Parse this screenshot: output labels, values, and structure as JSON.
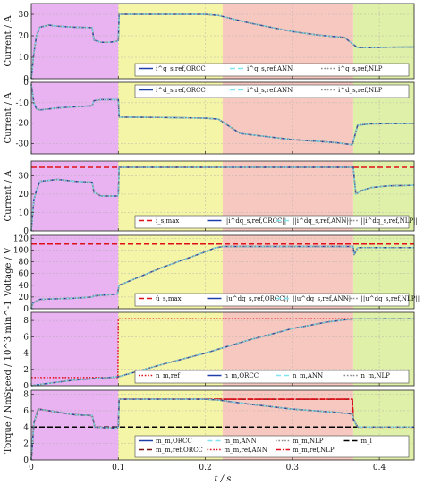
{
  "chart_data": {
    "type": "line",
    "title": "",
    "xlabel": "t / s",
    "xlim": [
      0,
      0.44
    ],
    "xticks": [
      "0",
      "0.1",
      "0.2",
      "0.3",
      "0.4"
    ],
    "xtick_values": [
      0,
      0.1,
      0.2,
      0.3,
      0.4
    ],
    "grid": true,
    "region_colors": [
      "#e8b3f0",
      "#f5f5a8",
      "#f7c8c0",
      "#dff0a8"
    ],
    "regions_t": [
      [
        0,
        0.1
      ],
      [
        0.1,
        0.22
      ],
      [
        0.22,
        0.37
      ],
      [
        0.37,
        0.44
      ]
    ],
    "panels": [
      {
        "ylabel": "Current / A",
        "ylim": [
          0,
          35
        ],
        "yticks": [
          0,
          10,
          20,
          30
        ],
        "legend": [
          "i^q_s,ref,ORCC",
          "i^q_s,ref,ANN",
          "i^q_s,ref,NLP"
        ],
        "legend_location": "bottom",
        "series": [
          {
            "name": "i^q_s,ref,ORCC",
            "color": "#1f3fa8",
            "style": "solid",
            "t": [
              0,
              0.003,
              0.006,
              0.01,
              0.02,
              0.03,
              0.05,
              0.07,
              0.072,
              0.08,
              0.09,
              0.099,
              0.1,
              0.101,
              0.15,
              0.2,
              0.215,
              0.25,
              0.3,
              0.33,
              0.36,
              0.37,
              0.375,
              0.39,
              0.41,
              0.44
            ],
            "values": [
              0,
              12,
              20,
              24,
              25,
              24.5,
              24,
              23.8,
              18,
              17,
              17,
              17.5,
              18,
              30,
              30,
              30,
              29.5,
              26,
              22,
              20.3,
              19.2,
              16,
              14.5,
              14.5,
              14.7,
              14.8
            ]
          },
          {
            "name": "i^q_s,ref,ANN",
            "color": "#7fe3f0",
            "style": "dashed",
            "same_as": "i^q_s,ref,ORCC"
          },
          {
            "name": "i^q_s,ref,NLP",
            "color": "#8a8a8a",
            "style": "dotted",
            "same_as": "i^q_s,ref,ORCC"
          }
        ]
      },
      {
        "ylabel": "Current / A",
        "ylim": [
          -35,
          0
        ],
        "yticks": [
          -30,
          -20,
          -10,
          0
        ],
        "legend": [
          "i^d_s,ref,ORCC",
          "i^d_s,ref,ANN",
          "i^d_s,ref,NLP"
        ],
        "legend_location": "top",
        "series": [
          {
            "name": "i^d_s,ref,ORCC",
            "color": "#1f3fa8",
            "style": "solid",
            "t": [
              0,
              0.003,
              0.006,
              0.01,
              0.03,
              0.05,
              0.07,
              0.072,
              0.08,
              0.09,
              0.099,
              0.1,
              0.101,
              0.15,
              0.2,
              0.215,
              0.24,
              0.3,
              0.35,
              0.369,
              0.37,
              0.375,
              0.39,
              0.41,
              0.44
            ],
            "values": [
              -1,
              -10,
              -13,
              -13.5,
              -12.5,
              -12,
              -11.5,
              -9,
              -8.5,
              -8.5,
              -8.5,
              -8.5,
              -17,
              -17.2,
              -17.5,
              -18,
              -25,
              -28,
              -29.5,
              -30.5,
              -29,
              -21,
              -20.3,
              -20.2,
              -20.1
            ]
          },
          {
            "name": "i^d_s,ref,ANN",
            "color": "#7fe3f0",
            "style": "dashed",
            "same_as": "i^d_s,ref,ORCC"
          },
          {
            "name": "i^d_s,ref,NLP",
            "color": "#8a8a8a",
            "style": "dotted",
            "same_as": "i^d_s,ref,ORCC"
          }
        ]
      },
      {
        "ylabel": "Current / A",
        "ylim": [
          0,
          38
        ],
        "yticks": [
          0,
          10,
          20,
          30
        ],
        "legend": [
          "i_s,max",
          "||i^dq_s,ref,ORCC||",
          "||i^dq_s,ref,ANN||",
          "||i^dq_s,ref,NLP||"
        ],
        "legend_location": "bottom",
        "series": [
          {
            "name": "i_s,max",
            "color": "#e0101a",
            "style": "dashed",
            "t": [
              0,
              0.44
            ],
            "values": [
              34.6,
              34.6
            ]
          },
          {
            "name": "||i^dq_s,ref,ORCC||",
            "color": "#1f3fa8",
            "style": "solid",
            "t": [
              0,
              0.003,
              0.006,
              0.01,
              0.03,
              0.05,
              0.07,
              0.072,
              0.08,
              0.09,
              0.099,
              0.1,
              0.101,
              0.2,
              0.3,
              0.369,
              0.37,
              0.373,
              0.38,
              0.39,
              0.41,
              0.44
            ],
            "values": [
              0,
              17,
              22,
              27,
              28,
              27,
              26.5,
              21,
              19,
              19,
              19,
              19.5,
              34.6,
              34.6,
              34.6,
              34.6,
              34.6,
              20,
              22,
              23.5,
              24.5,
              24.8
            ]
          },
          {
            "name": "||i^dq_s,ref,ANN||",
            "color": "#7fe3f0",
            "style": "dashed",
            "same_as": "||i^dq_s,ref,ORCC||"
          },
          {
            "name": "||i^dq_s,ref,NLP||",
            "color": "#8a8a8a",
            "style": "dotted",
            "same_as": "||i^dq_s,ref,ORCC||"
          }
        ]
      },
      {
        "ylabel": "Voltage / V",
        "ylim": [
          0,
          125
        ],
        "yticks": [
          0,
          20,
          40,
          60,
          80,
          100,
          120
        ],
        "legend": [
          "û_s,max",
          "||u^dq_s,ref,ORCC||",
          "||u^dq_s,ref,ANN||",
          "||u^dq_s,ref,NLP||"
        ],
        "legend_location": "bottom",
        "series": [
          {
            "name": "û_s,max",
            "color": "#e0101a",
            "style": "dashed",
            "t": [
              0,
              0.44
            ],
            "values": [
              110,
              110
            ]
          },
          {
            "name": "||u^dq_s,ref,ORCC||",
            "color": "#1f3fa8",
            "style": "solid",
            "t": [
              0,
              0.002,
              0.01,
              0.05,
              0.07,
              0.072,
              0.09,
              0.099,
              0.101,
              0.15,
              0.2,
              0.21,
              0.22,
              0.3,
              0.37,
              0.371,
              0.375,
              0.44
            ],
            "values": [
              0,
              10,
              16,
              18,
              20,
              22,
              24,
              25,
              40,
              70,
              97,
              103,
              106,
              106,
              106,
              92,
              104,
              104
            ]
          },
          {
            "name": "||u^dq_s,ref,ANN||",
            "color": "#7fe3f0",
            "style": "dashed",
            "same_as": "||u^dq_s,ref,ORCC||"
          },
          {
            "name": "||u^dq_s,ref,NLP||",
            "color": "#8a8a8a",
            "style": "dotted",
            "same_as": "||u^dq_s,ref,ORCC||"
          }
        ]
      },
      {
        "ylabel": "Speed / 10^3 min^-1",
        "ylim": [
          0,
          9
        ],
        "yticks": [
          0,
          2,
          4,
          6,
          8
        ],
        "legend": [
          "n_m,ref",
          "n_m,ORCC",
          "n_m,ANN",
          "n_m,NLP"
        ],
        "legend_location": "bottom",
        "series": [
          {
            "name": "n_m,ref",
            "color": "#e0101a",
            "style": "dotted",
            "t": [
              0,
              0.0995,
              0.1,
              0.44
            ],
            "values": [
              1,
              1,
              8.2,
              8.2
            ]
          },
          {
            "name": "n_m,ORCC",
            "color": "#1f3fa8",
            "style": "solid",
            "t": [
              0,
              0.02,
              0.05,
              0.1,
              0.15,
              0.2,
              0.25,
              0.3,
              0.34,
              0.37,
              0.38,
              0.44
            ],
            "values": [
              0,
              0.3,
              0.7,
              1.1,
              2.6,
              4.0,
              5.6,
              7.0,
              7.8,
              8.2,
              8.2,
              8.2
            ]
          },
          {
            "name": "n_m,ANN",
            "color": "#7fe3f0",
            "style": "dashed",
            "same_as": "n_m,ORCC"
          },
          {
            "name": "n_m,NLP",
            "color": "#8a8a8a",
            "style": "dotted",
            "same_as": "n_m,ORCC"
          }
        ]
      },
      {
        "ylabel": "Torque / Nm",
        "ylim": [
          0,
          8.5
        ],
        "yticks": [
          0,
          2,
          4,
          6,
          8
        ],
        "legend": [
          "m_m,ORCC",
          "m_m,ANN",
          "m_m,NLP",
          "m_l",
          "m_m,ref,ORCC",
          "m_m,ref,ANN",
          "m_m,ref,NLP"
        ],
        "legend_location": "bottom",
        "series": [
          {
            "name": "m_l",
            "color": "#000000",
            "style": "dashed",
            "t": [
              0,
              0.44
            ],
            "values": [
              4,
              4
            ]
          },
          {
            "name": "m_m,ref,ORCC",
            "color": "#7a1010",
            "style": "dashed",
            "t": [
              0,
              0.003,
              0.008,
              0.02,
              0.05,
              0.07,
              0.073,
              0.09,
              0.099,
              0.1,
              0.101,
              0.2,
              0.215,
              0.3,
              0.369,
              0.37,
              0.375,
              0.39,
              0.44
            ],
            "values": [
              0,
              4.5,
              6.2,
              6.0,
              5.5,
              5.4,
              4.0,
              3.9,
              3.9,
              4.0,
              7.4,
              7.4,
              7.4,
              7.4,
              7.4,
              5.0,
              4.0,
              4.0,
              4.0
            ]
          },
          {
            "name": "m_m,ref,ANN",
            "color": "#e0101a",
            "style": "dotted",
            "same_as": "m_m,ref,ORCC"
          },
          {
            "name": "m_m,ref,NLP",
            "color": "#e0101a",
            "style": "dashdot",
            "same_as": "m_m,ref,ORCC"
          },
          {
            "name": "m_m,ORCC",
            "color": "#1f3fa8",
            "style": "solid",
            "t": [
              0,
              0.003,
              0.008,
              0.02,
              0.05,
              0.07,
              0.073,
              0.09,
              0.099,
              0.1,
              0.101,
              0.2,
              0.215,
              0.25,
              0.3,
              0.35,
              0.369,
              0.37,
              0.375,
              0.39,
              0.44
            ],
            "values": [
              0,
              4.5,
              6.2,
              6.0,
              5.5,
              5.4,
              4.0,
              3.9,
              3.9,
              4.0,
              7.4,
              7.4,
              7.3,
              6.8,
              6.2,
              5.8,
              5.6,
              5.0,
              4.0,
              4.0,
              4.0
            ]
          },
          {
            "name": "m_m,ANN",
            "color": "#7fe3f0",
            "style": "dashed",
            "same_as": "m_m,ORCC"
          },
          {
            "name": "m_m,NLP",
            "color": "#8a8a8a",
            "style": "dotted",
            "same_as": "m_m,ORCC"
          }
        ]
      }
    ]
  }
}
